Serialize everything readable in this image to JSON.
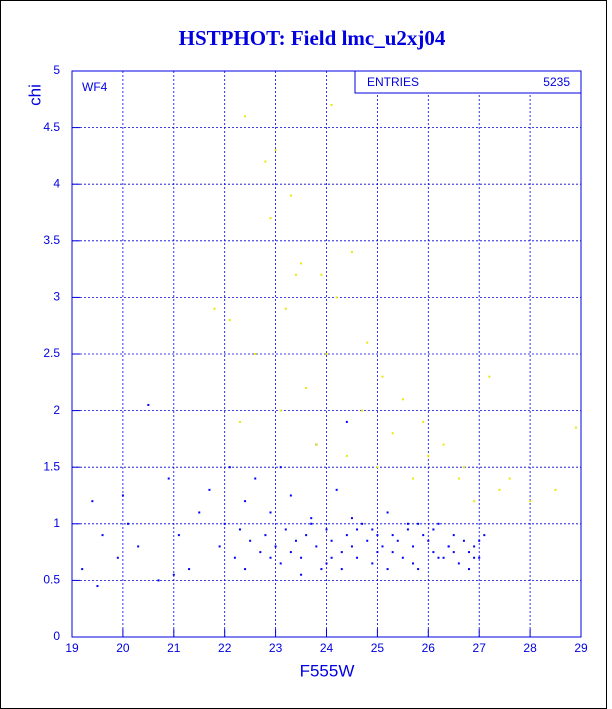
{
  "chart_data": {
    "type": "scatter",
    "title": "HSTPHOT: Field lmc_u2xj04",
    "x_label": "F555W",
    "y_label": "chi",
    "annotation": "WF4",
    "stats": {
      "label": "ENTRIES",
      "value": 5235
    },
    "xlim": [
      19,
      29
    ],
    "ylim": [
      0,
      5
    ],
    "xticks": [
      19,
      20,
      21,
      22,
      23,
      24,
      25,
      26,
      27,
      28,
      29
    ],
    "yticks": [
      0,
      0.5,
      1,
      1.5,
      2,
      2.5,
      3,
      3.5,
      4,
      4.5,
      5
    ],
    "grid": true,
    "series": [
      {
        "color": "#0000ff",
        "x": [
          19.2,
          19.4,
          19.6,
          19.9,
          20.1,
          20.3,
          20.5,
          20.7,
          20.9,
          21.1,
          21.3,
          21.5,
          21.7,
          21.9,
          22.1,
          22.2,
          22.3,
          22.4,
          22.5,
          22.6,
          22.7,
          22.8,
          22.9,
          23.0,
          23.1,
          23.2,
          23.3,
          23.4,
          23.5,
          23.6,
          23.7,
          23.8,
          23.9,
          24.0,
          24.1,
          24.2,
          24.3,
          24.4,
          24.5,
          24.6,
          24.7,
          24.8,
          24.9,
          25.0,
          25.1,
          25.2,
          25.3,
          25.4,
          25.5,
          25.6,
          25.7,
          25.8,
          25.9,
          26.0,
          26.1,
          26.2,
          26.3,
          26.4,
          26.5,
          26.6,
          26.7,
          26.8,
          26.9,
          27.0,
          27.1,
          22.4,
          22.9,
          23.3,
          23.7,
          24.1,
          24.5,
          24.9,
          25.3,
          25.7,
          26.1,
          26.5,
          26.9,
          23.5,
          24.0,
          24.6,
          25.2,
          25.8,
          26.4,
          27.0,
          22.0,
          21.0,
          20.0,
          19.5,
          23.1,
          24.3,
          25.0,
          25.6,
          26.2,
          26.8,
          24.4,
          23.8
        ],
        "values": [
          0.6,
          1.2,
          0.9,
          0.7,
          1.0,
          0.8,
          2.05,
          0.5,
          1.4,
          0.9,
          0.6,
          1.1,
          1.3,
          0.8,
          1.5,
          0.7,
          0.95,
          1.2,
          0.85,
          1.4,
          0.75,
          0.9,
          1.1,
          0.8,
          0.65,
          0.95,
          1.25,
          0.85,
          0.7,
          0.9,
          1.05,
          0.8,
          0.6,
          0.95,
          0.85,
          1.3,
          0.75,
          0.9,
          0.8,
          0.7,
          1.0,
          0.85,
          0.65,
          0.9,
          0.8,
          1.1,
          0.75,
          0.85,
          0.7,
          0.95,
          0.8,
          0.6,
          0.9,
          0.85,
          0.75,
          1.0,
          0.7,
          0.8,
          0.9,
          0.65,
          0.85,
          0.75,
          0.8,
          0.7,
          0.9,
          0.6,
          0.7,
          0.75,
          1.0,
          0.7,
          1.05,
          0.95,
          0.9,
          0.65,
          0.95,
          0.75,
          0.7,
          0.55,
          0.65,
          0.95,
          0.6,
          1.0,
          0.8,
          0.85,
          1.0,
          0.55,
          1.25,
          0.45,
          1.5,
          0.6,
          0.75,
          1.0,
          0.7,
          0.6,
          1.9,
          1.7
        ]
      },
      {
        "color": "#e8e800",
        "x": [
          22.4,
          22.8,
          23.0,
          23.3,
          23.5,
          23.9,
          22.9,
          23.2,
          24.2,
          24.5,
          24.8,
          25.1,
          25.5,
          25.9,
          26.3,
          26.7,
          27.2,
          27.6,
          28.0,
          28.5,
          28.9,
          22.1,
          22.6,
          23.6,
          24.0,
          24.7,
          25.3,
          26.0,
          26.6,
          27.4,
          21.8,
          22.3,
          23.1,
          23.8,
          24.4,
          25.0,
          25.7,
          26.9,
          24.1,
          23.4
        ],
        "values": [
          4.6,
          4.2,
          4.3,
          3.9,
          3.3,
          3.2,
          3.7,
          2.9,
          3.0,
          3.4,
          2.6,
          2.3,
          2.1,
          1.9,
          1.7,
          1.5,
          2.3,
          1.4,
          1.2,
          1.3,
          1.85,
          2.8,
          2.5,
          2.2,
          2.5,
          2.0,
          1.8,
          1.6,
          1.4,
          1.3,
          2.9,
          1.9,
          2.0,
          1.7,
          1.6,
          1.5,
          1.4,
          1.2,
          4.7,
          3.2
        ]
      }
    ]
  }
}
